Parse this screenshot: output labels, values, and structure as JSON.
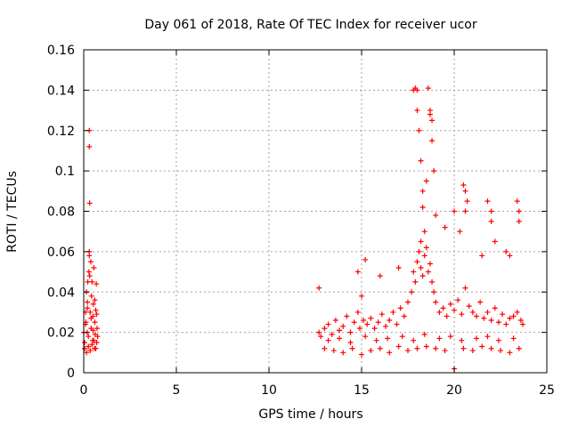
{
  "chart_data": {
    "type": "scatter",
    "title": "Day 061 of 2018, Rate Of TEC Index for receiver ucor",
    "xlabel": "GPS time / hours",
    "ylabel": "ROTI / TECUs",
    "xlim": [
      0,
      25
    ],
    "ylim": [
      0,
      0.16
    ],
    "xticks": [
      0,
      5,
      10,
      15,
      20,
      25
    ],
    "yticks": [
      0,
      0.02,
      0.04,
      0.06,
      0.08,
      0.1,
      0.12,
      0.14,
      0.16
    ],
    "xtick_labels": [
      "0",
      "5",
      "10",
      "15",
      "20",
      "25"
    ],
    "ytick_labels": [
      "0",
      "0.02",
      "0.04",
      "0.06",
      "0.08",
      "0.1",
      "0.12",
      "0.14",
      "0.16"
    ],
    "grid": true,
    "marker": "plus",
    "color": "#ff0000",
    "series": [
      {
        "x": [
          0.0,
          0.05,
          0.1,
          0.12,
          0.15,
          0.18,
          0.2,
          0.22,
          0.25,
          0.28,
          0.3,
          0.3,
          0.32,
          0.35,
          0.38,
          0.4,
          0.42,
          0.45,
          0.48,
          0.5,
          0.52,
          0.55,
          0.58,
          0.6,
          0.62,
          0.65,
          0.68,
          0.7,
          0.72,
          0.75,
          0.3,
          0.3,
          0.32,
          0.05,
          0.15,
          0.25,
          0.35,
          0.45,
          0.55,
          0.65,
          0.1,
          0.2,
          0.4,
          0.5,
          0.6,
          0.7,
          12.7,
          12.8,
          13.0,
          13.2,
          13.4,
          13.6,
          13.8,
          14.0,
          14.2,
          14.4,
          14.6,
          14.8,
          14.9,
          15.0,
          15.1,
          15.3,
          15.5,
          15.7,
          15.9,
          16.1,
          16.3,
          16.5,
          16.7,
          16.9,
          17.1,
          17.3,
          17.5,
          17.7,
          17.8,
          17.9,
          18.0,
          18.1,
          18.2,
          18.3,
          18.4,
          18.5,
          18.6,
          18.7,
          18.8,
          18.9,
          19.0,
          19.2,
          19.4,
          19.6,
          19.8,
          20.0,
          20.2,
          20.4,
          20.6,
          20.8,
          21.0,
          21.2,
          21.4,
          21.6,
          21.8,
          22.0,
          22.2,
          22.4,
          22.6,
          22.8,
          23.0,
          23.2,
          23.4,
          23.6,
          23.7,
          13.0,
          13.5,
          14.0,
          14.5,
          15.0,
          15.5,
          16.0,
          16.5,
          17.0,
          17.5,
          18.0,
          18.5,
          19.0,
          19.5,
          20.0,
          20.5,
          21.0,
          21.5,
          22.0,
          22.5,
          23.0,
          23.5,
          13.2,
          13.8,
          14.4,
          15.2,
          15.8,
          16.4,
          17.2,
          17.8,
          18.4,
          19.2,
          19.8,
          20.4,
          21.2,
          21.8,
          22.4,
          23.2,
          17.8,
          17.9,
          18.0,
          18.0,
          18.1,
          18.2,
          18.3,
          18.3,
          18.6,
          18.7,
          18.7,
          18.8,
          18.8,
          18.9,
          18.5,
          18.4,
          18.2,
          20.5,
          20.6,
          20.7,
          20.6,
          21.8,
          22.0,
          22.0,
          22.2,
          23.4,
          23.5,
          23.5,
          20.0,
          19.5,
          19.0,
          16.0,
          17.0,
          14.8,
          15.2,
          12.7,
          22.8,
          23.0,
          21.5,
          20.3
        ],
        "y": [
          0.02,
          0.015,
          0.03,
          0.025,
          0.04,
          0.02,
          0.035,
          0.045,
          0.018,
          0.05,
          0.12,
          0.112,
          0.084,
          0.03,
          0.055,
          0.022,
          0.038,
          0.045,
          0.016,
          0.028,
          0.034,
          0.052,
          0.012,
          0.025,
          0.019,
          0.031,
          0.044,
          0.015,
          0.022,
          0.018,
          0.058,
          0.06,
          0.048,
          0.012,
          0.01,
          0.013,
          0.011,
          0.014,
          0.016,
          0.012,
          0.024,
          0.032,
          0.027,
          0.021,
          0.036,
          0.029,
          0.02,
          0.018,
          0.022,
          0.024,
          0.019,
          0.026,
          0.021,
          0.023,
          0.028,
          0.02,
          0.025,
          0.03,
          0.022,
          0.038,
          0.026,
          0.024,
          0.027,
          0.022,
          0.025,
          0.029,
          0.023,
          0.026,
          0.03,
          0.024,
          0.032,
          0.028,
          0.035,
          0.04,
          0.05,
          0.045,
          0.055,
          0.06,
          0.052,
          0.048,
          0.058,
          0.062,
          0.05,
          0.054,
          0.045,
          0.04,
          0.035,
          0.03,
          0.032,
          0.028,
          0.034,
          0.031,
          0.036,
          0.029,
          0.042,
          0.033,
          0.03,
          0.028,
          0.035,
          0.027,
          0.03,
          0.026,
          0.032,
          0.025,
          0.029,
          0.024,
          0.027,
          0.028,
          0.03,
          0.026,
          0.024,
          0.012,
          0.011,
          0.01,
          0.012,
          0.009,
          0.011,
          0.012,
          0.01,
          0.013,
          0.011,
          0.012,
          0.013,
          0.012,
          0.011,
          0.002,
          0.012,
          0.011,
          0.013,
          0.012,
          0.011,
          0.01,
          0.012,
          0.016,
          0.017,
          0.015,
          0.018,
          0.016,
          0.017,
          0.018,
          0.016,
          0.019,
          0.017,
          0.018,
          0.016,
          0.017,
          0.018,
          0.016,
          0.017,
          0.14,
          0.141,
          0.14,
          0.13,
          0.12,
          0.105,
          0.09,
          0.082,
          0.141,
          0.13,
          0.128,
          0.125,
          0.115,
          0.1,
          0.095,
          0.07,
          0.065,
          0.093,
          0.09,
          0.085,
          0.08,
          0.085,
          0.08,
          0.075,
          0.065,
          0.085,
          0.08,
          0.075,
          0.08,
          0.072,
          0.078,
          0.048,
          0.052,
          0.05,
          0.056,
          0.042,
          0.06,
          0.058,
          0.058,
          0.07
        ]
      }
    ]
  }
}
